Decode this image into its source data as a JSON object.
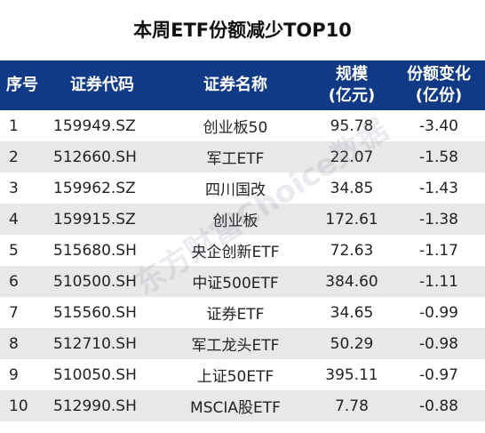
{
  "title": "本周ETF份额减少TOP10",
  "header": {
    "idx": "序号",
    "code": "证券代码",
    "name": "证券名称",
    "scale_line1": "规模",
    "scale_line2": "(亿元)",
    "change_line1": "份额变化",
    "change_line2": "(亿份)"
  },
  "rows": [
    {
      "idx": "1",
      "code": "159949.SZ",
      "name": "创业板50",
      "scale": "95.78",
      "change": "-3.40"
    },
    {
      "idx": "2",
      "code": "512660.SH",
      "name": "军工ETF",
      "scale": "22.07",
      "change": "-1.58"
    },
    {
      "idx": "3",
      "code": "159962.SZ",
      "name": "四川国改",
      "scale": "34.85",
      "change": "-1.43"
    },
    {
      "idx": "4",
      "code": "159915.SZ",
      "name": "创业板",
      "scale": "172.61",
      "change": "-1.38"
    },
    {
      "idx": "5",
      "code": "515680.SH",
      "name": "央企创新ETF",
      "scale": "72.63",
      "change": "-1.17"
    },
    {
      "idx": "6",
      "code": "510500.SH",
      "name": "中证500ETF",
      "scale": "384.60",
      "change": "-1.11"
    },
    {
      "idx": "7",
      "code": "515560.SH",
      "name": "证券ETF",
      "scale": "34.65",
      "change": "-0.99"
    },
    {
      "idx": "8",
      "code": "512710.SH",
      "name": "军工龙头ETF",
      "scale": "50.29",
      "change": "-0.98"
    },
    {
      "idx": "9",
      "code": "510050.SH",
      "name": "上证50ETF",
      "scale": "395.11",
      "change": "-0.97"
    },
    {
      "idx": "10",
      "code": "512990.SH",
      "name": "MSCIA股ETF",
      "scale": "7.78",
      "change": "-0.88"
    }
  ],
  "watermark": "东方财富Choice数据",
  "colors": {
    "header_bg": "#103a86",
    "stripe": "#e8e8e8"
  }
}
